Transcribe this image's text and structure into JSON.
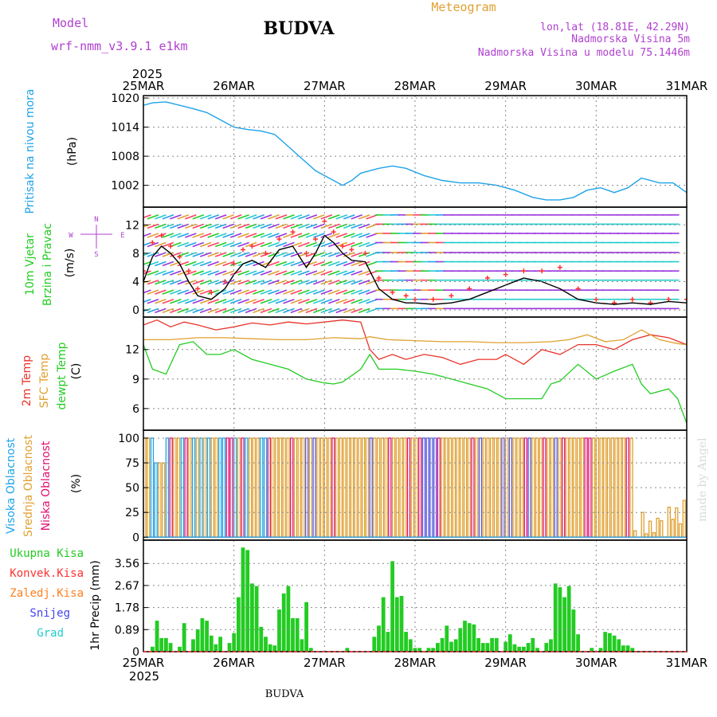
{
  "header": {
    "model_label": "Model",
    "model_name": "wrf-nmm_v3.9.1 e1km",
    "title": "BUDVA",
    "subtitle": "Meteogram",
    "coords": "lon,lat (18.81E, 42.29N)",
    "altitude": "Nadmorska Visina 5m",
    "model_altitude": "Nadmorska Visina u modelu 75.1446m",
    "footer_title": "BUDVA",
    "watermark": "made by Angel"
  },
  "time_axis": {
    "year": "2025",
    "ticks": [
      "25MAR",
      "26MAR",
      "27MAR",
      "28MAR",
      "29MAR",
      "30MAR",
      "31MAR"
    ]
  },
  "colors": {
    "pressure": "#1fa3e8",
    "wind_speed": "#000000",
    "gust": "#ff3030",
    "temp2m": "#e8332a",
    "sfc_temp": "#e0a030",
    "dewpoint": "#22cc22",
    "high_cloud": "#1fa3e8",
    "mid_cloud": "#e0a030",
    "low_cloud": "#e01070",
    "precip": "#22cc22",
    "conv_precip": "#ff3030",
    "frozen_precip": "#ff8020",
    "snow": "#4444ee",
    "hail": "#22cccc",
    "purple_text": "#b040d0"
  },
  "chart_data": [
    {
      "type": "line",
      "panel": "pressure",
      "ylabel_lines": [
        "Pritisak na nivou mora"
      ],
      "unit": "(hPa)",
      "yticks": [
        1002,
        1008,
        1014,
        1020
      ],
      "ylim": [
        997.5,
        1020.5
      ],
      "xlim": [
        0,
        6
      ],
      "grid": true,
      "series": [
        {
          "x": [
            0,
            0.1,
            0.25,
            0.4,
            0.55,
            0.7,
            0.85,
            1.0,
            1.15,
            1.3,
            1.45,
            1.6,
            1.75,
            1.9,
            2.0,
            2.1,
            2.2,
            2.3,
            2.4,
            2.5,
            2.6,
            2.75,
            2.9,
            3.1,
            3.3,
            3.5,
            3.7,
            3.9,
            4.1,
            4.3,
            4.45,
            4.6,
            4.75,
            4.9,
            5.05,
            5.2,
            5.35,
            5.5,
            5.7,
            5.85,
            6.0
          ],
          "values": [
            1018.5,
            1019.0,
            1019.2,
            1018.5,
            1017.8,
            1017.0,
            1015.5,
            1014.0,
            1013.5,
            1013.2,
            1012.5,
            1010.0,
            1007.5,
            1005.0,
            1004.0,
            1003.0,
            1002.0,
            1003.0,
            1004.5,
            1005.0,
            1005.5,
            1006.0,
            1005.5,
            1004.0,
            1003.0,
            1002.5,
            1002.5,
            1002.0,
            1001.0,
            999.5,
            999.0,
            999.0,
            999.5,
            1001.0,
            1001.5,
            1000.5,
            1001.5,
            1003.5,
            1002.5,
            1002.5,
            1000.5
          ]
        }
      ]
    },
    {
      "type": "line",
      "panel": "wind",
      "ylabel_lines": [
        "10m Vjetar",
        "Brzina i Pravac"
      ],
      "unit": "(m/s)",
      "compass": {
        "n": "N",
        "s": "S",
        "e": "E",
        "w": "W"
      },
      "yticks": [
        0,
        4,
        8,
        12
      ],
      "ylim": [
        -1,
        14.5
      ],
      "xlim": [
        0,
        6
      ],
      "grid": true,
      "series": [
        {
          "name": "speed",
          "x": [
            0,
            0.1,
            0.2,
            0.3,
            0.4,
            0.5,
            0.6,
            0.75,
            0.9,
            1.0,
            1.1,
            1.2,
            1.35,
            1.5,
            1.65,
            1.8,
            1.9,
            2.0,
            2.1,
            2.2,
            2.3,
            2.45,
            2.6,
            2.75,
            2.9,
            3.0,
            3.2,
            3.4,
            3.6,
            3.8,
            4.0,
            4.2,
            4.4,
            4.6,
            4.8,
            5.0,
            5.2,
            5.4,
            5.6,
            5.8,
            6.0
          ],
          "values": [
            4.0,
            7.5,
            9.0,
            8.0,
            6.5,
            4.0,
            2.0,
            1.5,
            3.0,
            5.0,
            6.5,
            7.0,
            6.0,
            8.5,
            9.0,
            6.0,
            8.0,
            10.5,
            9.5,
            8.0,
            7.0,
            6.8,
            3.0,
            1.5,
            1.0,
            1.0,
            0.8,
            1.0,
            1.5,
            2.5,
            3.5,
            4.5,
            4.0,
            3.0,
            1.5,
            1.0,
            0.8,
            1.0,
            0.8,
            1.2,
            1.0
          ]
        },
        {
          "name": "gust",
          "x": [
            0,
            0.1,
            0.2,
            0.3,
            0.4,
            0.5,
            0.6,
            0.75,
            0.9,
            1.0,
            1.1,
            1.2,
            1.35,
            1.5,
            1.65,
            1.8,
            1.9,
            2.0,
            2.1,
            2.2,
            2.3,
            2.45,
            2.6,
            2.75,
            2.9,
            3.0,
            3.2,
            3.4,
            3.6,
            3.8,
            4.0,
            4.2,
            4.4,
            4.6,
            4.8,
            5.0,
            5.2,
            5.4,
            5.6,
            5.8,
            6.0
          ],
          "values": [
            5.5,
            9.5,
            10.5,
            9.0,
            7.5,
            5.5,
            3.0,
            2.5,
            4.0,
            6.5,
            8.5,
            9.0,
            8.0,
            10.0,
            11.0,
            8.0,
            10.0,
            12.5,
            11.0,
            9.0,
            8.5,
            8.0,
            4.5,
            2.5,
            2.0,
            1.5,
            1.5,
            2.0,
            3.0,
            4.5,
            5.0,
            5.5,
            5.5,
            6.0,
            3.0,
            1.5,
            1.0,
            1.5,
            1.0,
            1.5,
            1.5
          ]
        }
      ]
    },
    {
      "type": "line",
      "panel": "temperature",
      "ylabel_lines": [
        "2m Temp",
        "SFC Temp",
        "dewpt Temp"
      ],
      "unit": "(C)",
      "yticks": [
        6,
        9,
        12
      ],
      "ylim": [
        3.8,
        15.3
      ],
      "xlim": [
        0,
        6
      ],
      "grid": true,
      "series": [
        {
          "name": "2m Temp",
          "x": [
            0,
            0.15,
            0.3,
            0.45,
            0.6,
            0.8,
            1.0,
            1.2,
            1.4,
            1.6,
            1.8,
            2.0,
            2.2,
            2.4,
            2.5,
            2.6,
            2.75,
            2.9,
            3.1,
            3.3,
            3.5,
            3.7,
            3.9,
            4.0,
            4.2,
            4.4,
            4.6,
            4.8,
            5.0,
            5.2,
            5.4,
            5.6,
            5.8,
            6.0
          ],
          "values": [
            14.5,
            15.0,
            14.3,
            14.8,
            14.5,
            14.0,
            14.3,
            14.7,
            14.5,
            14.8,
            14.6,
            14.8,
            15.0,
            14.8,
            12.0,
            11.0,
            11.5,
            11.0,
            11.5,
            11.2,
            10.5,
            11.0,
            11.0,
            11.5,
            10.5,
            12.0,
            11.5,
            12.5,
            12.5,
            12.0,
            13.0,
            13.5,
            13.2,
            12.5
          ]
        },
        {
          "name": "SFC Temp",
          "x": [
            0,
            0.3,
            0.6,
            0.9,
            1.2,
            1.5,
            1.8,
            2.1,
            2.4,
            2.5,
            2.7,
            3.0,
            3.3,
            3.6,
            3.9,
            4.2,
            4.5,
            4.7,
            4.9,
            5.1,
            5.3,
            5.5,
            5.7,
            5.9,
            6.0
          ],
          "values": [
            13.0,
            13.0,
            13.2,
            13.2,
            13.1,
            13.0,
            13.0,
            13.2,
            13.1,
            13.3,
            13.0,
            12.9,
            12.8,
            12.8,
            12.7,
            12.7,
            12.8,
            13.0,
            13.5,
            12.8,
            13.0,
            14.0,
            13.0,
            12.6,
            12.5
          ]
        },
        {
          "name": "dewpt Temp",
          "x": [
            0,
            0.1,
            0.25,
            0.4,
            0.55,
            0.7,
            0.85,
            1.0,
            1.2,
            1.4,
            1.6,
            1.8,
            2.0,
            2.1,
            2.2,
            2.4,
            2.5,
            2.6,
            2.8,
            3.0,
            3.2,
            3.4,
            3.6,
            3.8,
            4.0,
            4.2,
            4.4,
            4.5,
            4.6,
            4.8,
            5.0,
            5.2,
            5.4,
            5.5,
            5.6,
            5.8,
            5.9,
            6.0
          ],
          "values": [
            12.5,
            10.0,
            9.5,
            12.5,
            12.8,
            11.5,
            11.5,
            12.0,
            11.0,
            10.5,
            10.0,
            9.0,
            8.6,
            8.5,
            8.7,
            10.0,
            11.5,
            10.0,
            10.0,
            9.8,
            9.5,
            9.0,
            8.5,
            8.0,
            7.0,
            7.0,
            7.0,
            8.5,
            8.8,
            10.5,
            9.0,
            9.8,
            10.5,
            8.5,
            7.5,
            8.0,
            7.0,
            4.5
          ]
        }
      ]
    },
    {
      "type": "bar",
      "panel": "cloud",
      "ylabel_lines": [
        "Visoka Oblacnost",
        "Srednja Oblacnost",
        "Niska Oblacnost"
      ],
      "unit": "(%)",
      "yticks": [
        0,
        25,
        50,
        75,
        100
      ],
      "ylim": [
        -3,
        108
      ],
      "xlim": [
        0,
        6
      ],
      "grid": true,
      "series_names": [
        "high",
        "mid",
        "low"
      ]
    },
    {
      "type": "bar",
      "panel": "precip",
      "ylabel_lines": [
        "1hr Precip (mm)"
      ],
      "legend": [
        "Ukupna Kisa",
        "Konvek.Kisa",
        "Zaledj.Kisa",
        "Snijeg",
        "Grad"
      ],
      "yticks": [
        0,
        0.89,
        1.78,
        2.67,
        3.56
      ],
      "ylim": [
        0,
        4.5
      ],
      "xlim": [
        0,
        6
      ],
      "grid": true,
      "x": [
        0.1,
        0.15,
        0.2,
        0.25,
        0.3,
        0.4,
        0.45,
        0.55,
        0.6,
        0.65,
        0.7,
        0.75,
        0.8,
        0.85,
        0.95,
        1.0,
        1.05,
        1.1,
        1.15,
        1.2,
        1.25,
        1.3,
        1.35,
        1.4,
        1.45,
        1.5,
        1.55,
        1.6,
        1.65,
        1.7,
        1.75,
        1.8,
        1.85,
        2.25,
        2.55,
        2.6,
        2.65,
        2.7,
        2.75,
        2.8,
        2.85,
        2.9,
        2.95,
        3.0,
        3.05,
        3.15,
        3.2,
        3.25,
        3.3,
        3.35,
        3.4,
        3.45,
        3.5,
        3.55,
        3.6,
        3.65,
        3.7,
        3.75,
        3.8,
        3.85,
        3.9,
        4.0,
        4.05,
        4.1,
        4.15,
        4.2,
        4.25,
        4.3,
        4.35,
        4.45,
        4.5,
        4.55,
        4.6,
        4.65,
        4.7,
        4.75,
        4.8,
        4.95,
        5.05,
        5.1,
        5.15,
        5.2,
        5.25,
        5.3,
        5.35,
        5.4
      ],
      "values": [
        0.2,
        1.25,
        0.55,
        0.55,
        0.35,
        0.2,
        1.15,
        0.5,
        0.9,
        1.35,
        1.25,
        0.65,
        0.3,
        0.6,
        0.35,
        0.75,
        2.2,
        4.2,
        4.1,
        2.75,
        2.65,
        1.0,
        0.6,
        0.3,
        0.25,
        1.7,
        2.35,
        2.65,
        1.35,
        1.35,
        0.5,
        2.0,
        0.15,
        0.15,
        0.6,
        1.05,
        2.2,
        0.8,
        3.65,
        2.2,
        2.25,
        0.8,
        0.5,
        0.15,
        0.15,
        0.15,
        0.15,
        0.35,
        0.55,
        1.05,
        0.4,
        0.5,
        0.95,
        1.25,
        1.15,
        1.1,
        0.55,
        0.35,
        0.35,
        0.55,
        0.55,
        0.4,
        0.7,
        0.3,
        0.2,
        0.2,
        0.35,
        0.55,
        0.15,
        0.35,
        0.5,
        2.75,
        2.6,
        2.2,
        2.65,
        1.7,
        0.7,
        0.15,
        0.15,
        0.8,
        0.75,
        0.65,
        0.5,
        0.25,
        0.25,
        0.15
      ]
    }
  ]
}
